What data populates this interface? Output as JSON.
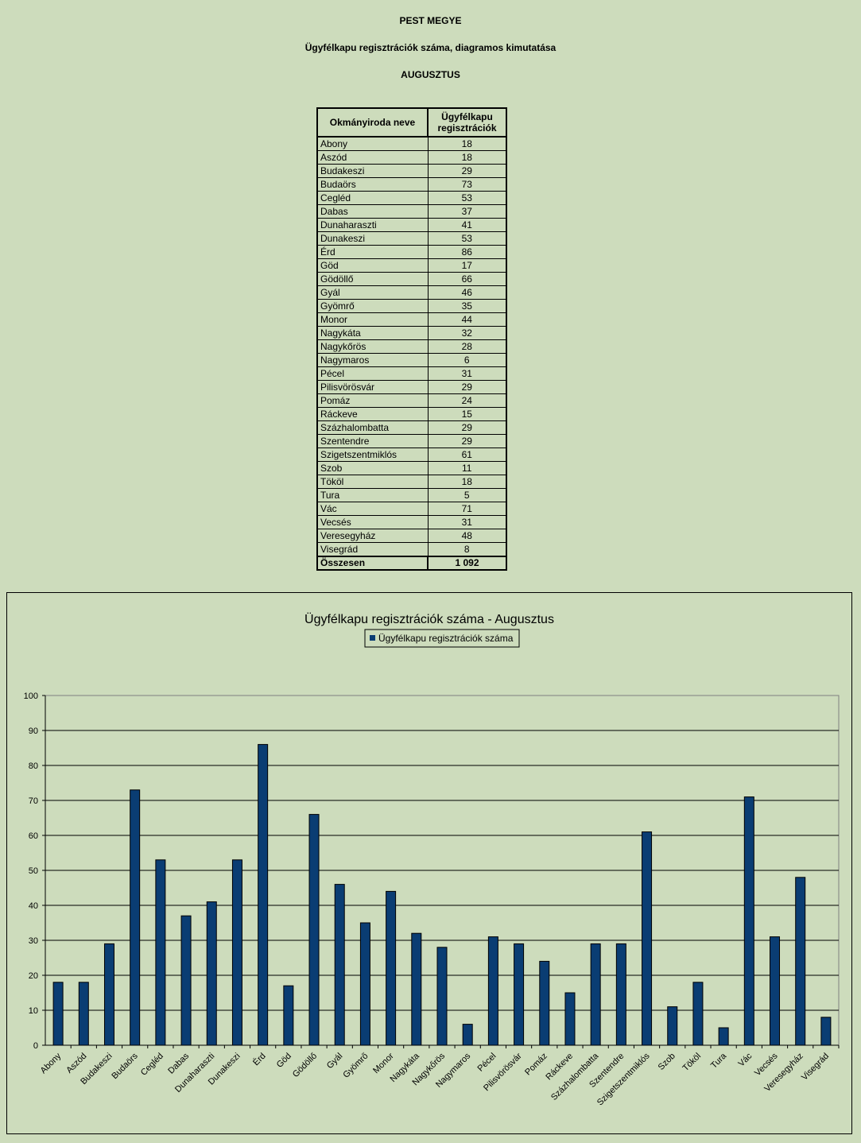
{
  "header": {
    "county": "PEST MEGYE",
    "subtitle": "Ügyfélkapu regisztrációk száma, diagramos kimutatása",
    "month": "AUGUSZTUS"
  },
  "table": {
    "col_name": "Okmányiroda neve",
    "col_value_line1": "Ügyfélkapu",
    "col_value_line2": "regisztrációk",
    "rows": [
      {
        "name": "Abony",
        "value": "18"
      },
      {
        "name": "Aszód",
        "value": "18"
      },
      {
        "name": "Budakeszi",
        "value": "29"
      },
      {
        "name": "Budaörs",
        "value": "73"
      },
      {
        "name": "Cegléd",
        "value": "53"
      },
      {
        "name": "Dabas",
        "value": "37"
      },
      {
        "name": "Dunaharaszti",
        "value": "41"
      },
      {
        "name": "Dunakeszi",
        "value": "53"
      },
      {
        "name": "Érd",
        "value": "86"
      },
      {
        "name": "Göd",
        "value": "17"
      },
      {
        "name": "Gödöllő",
        "value": "66"
      },
      {
        "name": "Gyál",
        "value": "46"
      },
      {
        "name": "Gyömrő",
        "value": "35"
      },
      {
        "name": "Monor",
        "value": "44"
      },
      {
        "name": "Nagykáta",
        "value": "32"
      },
      {
        "name": "Nagykőrös",
        "value": "28"
      },
      {
        "name": "Nagymaros",
        "value": "6"
      },
      {
        "name": "Pécel",
        "value": "31"
      },
      {
        "name": "Pilisvörösvár",
        "value": "29"
      },
      {
        "name": "Pomáz",
        "value": "24"
      },
      {
        "name": "Ráckeve",
        "value": "15"
      },
      {
        "name": "Százhalombatta",
        "value": "29"
      },
      {
        "name": "Szentendre",
        "value": "29"
      },
      {
        "name": "Szigetszentmiklós",
        "value": "61"
      },
      {
        "name": "Szob",
        "value": "11"
      },
      {
        "name": "Tököl",
        "value": "18"
      },
      {
        "name": "Tura",
        "value": "5"
      },
      {
        "name": "Vác",
        "value": "71"
      },
      {
        "name": "Vecsés",
        "value": "31"
      },
      {
        "name": "Veresegyház",
        "value": "48"
      },
      {
        "name": "Visegrád",
        "value": "8"
      }
    ],
    "total_label": "Összesen",
    "total_value": "1 092"
  },
  "chart_data": {
    "type": "bar",
    "title": "Ügyfélkapu regisztrációk száma - Augusztus",
    "xlabel": "",
    "ylabel": "",
    "ylim": [
      0,
      100
    ],
    "yticks": [
      0,
      10,
      20,
      30,
      40,
      50,
      60,
      70,
      80,
      90,
      100
    ],
    "grid": true,
    "legend_position": "top",
    "categories": [
      "Abony",
      "Aszód",
      "Budakeszi",
      "Budaörs",
      "Cegléd",
      "Dabas",
      "Dunaharaszti",
      "Dunakeszi",
      "Érd",
      "Göd",
      "Gödöllő",
      "Gyál",
      "Gyömrő",
      "Monor",
      "Nagykáta",
      "Nagykőrös",
      "Nagymaros",
      "Pécel",
      "Pilisvörösvár",
      "Pomáz",
      "Ráckeve",
      "Százhalombatta",
      "Szentendre",
      "Szigetszentmiklós",
      "Szob",
      "Tököl",
      "Tura",
      "Vác",
      "Vecsés",
      "Veresegyház",
      "Visegrád"
    ],
    "series": [
      {
        "name": "Ügyfélkapu regisztrációk száma",
        "color": "#0a3d73",
        "values": [
          18,
          18,
          29,
          73,
          53,
          37,
          41,
          53,
          86,
          17,
          66,
          46,
          35,
          44,
          32,
          28,
          6,
          31,
          29,
          24,
          15,
          29,
          29,
          61,
          11,
          18,
          5,
          71,
          31,
          48,
          8
        ]
      }
    ]
  }
}
